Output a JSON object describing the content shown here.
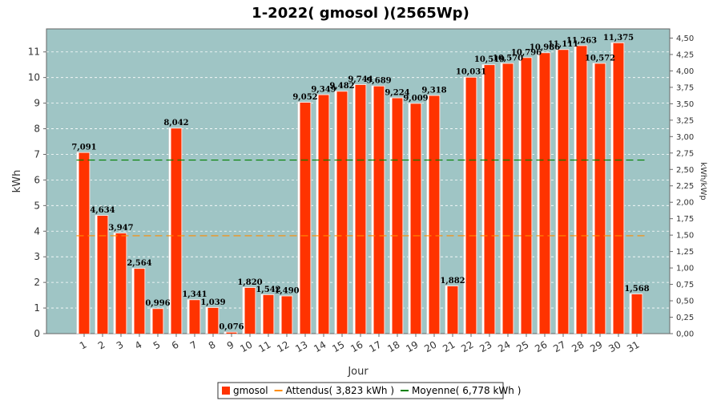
{
  "colors": {
    "plot_background": "#9fc5c5",
    "bar_fill": "#ff3300",
    "bar_highlight": "#ffffff",
    "attendu_line": "#ff8c00",
    "moyenne_line": "#008000",
    "grid": "#ffffff"
  },
  "legend": {
    "items": [
      {
        "label": "gmosol",
        "symbol": "square",
        "color": "#ff3300"
      },
      {
        "label": "Attendus( 3,823 kWh )",
        "symbol": "line",
        "color": "#ff8c00"
      },
      {
        "label": "Moyenne( 6,778 kWh )",
        "symbol": "line",
        "color": "#008000"
      }
    ]
  },
  "chart_data": {
    "type": "bar",
    "title": "1-2022( gmosol )(2565Wp)",
    "xlabel": "Jour",
    "ylabel": "kWh",
    "y2label": "kWh/kWp",
    "ylim": [
      0,
      11.9
    ],
    "y2lim": [
      0,
      4.64
    ],
    "y_ticks": [
      "0",
      "1",
      "2",
      "3",
      "4",
      "5",
      "6",
      "7",
      "8",
      "9",
      "10",
      "11"
    ],
    "y2_ticks": [
      "0,00",
      "0,25",
      "0,50",
      "0,75",
      "1,00",
      "1,25",
      "1,50",
      "1,75",
      "2,00",
      "2,25",
      "2,50",
      "2,75",
      "3,00",
      "3,25",
      "3,50",
      "3,75",
      "4,00",
      "4,25",
      "4,50"
    ],
    "categories": [
      "1",
      "2",
      "3",
      "4",
      "5",
      "6",
      "7",
      "8",
      "9",
      "10",
      "11",
      "12",
      "13",
      "14",
      "15",
      "16",
      "17",
      "18",
      "19",
      "20",
      "21",
      "22",
      "23",
      "24",
      "25",
      "26",
      "27",
      "28",
      "29",
      "30",
      "31"
    ],
    "series": [
      {
        "name": "gmosol",
        "values": [
          7.091,
          4.634,
          3.947,
          2.564,
          0.996,
          8.042,
          1.341,
          1.039,
          0.076,
          1.82,
          1.542,
          1.49,
          9.052,
          9.349,
          9.482,
          9.744,
          9.689,
          9.224,
          9.009,
          9.318,
          1.882,
          10.031,
          10.519,
          10.57,
          10.796,
          10.986,
          11.111,
          11.263,
          10.572,
          11.375,
          1.568
        ],
        "labels": [
          "7,091",
          "4,634",
          "3,947",
          "2,564",
          "0,996",
          "8,042",
          "1,341",
          "1,039",
          "0,076",
          "1,820",
          "1,542",
          "1,490",
          "9,052",
          "9,349",
          "9,482",
          "9,744",
          "9,689",
          "9,224",
          "9,009",
          "9,318",
          "1,882",
          "10,031",
          "10,519",
          "10,570",
          "10,796",
          "10,986",
          "11,111",
          "11,263",
          "10,572",
          "11,375",
          "1,568"
        ]
      }
    ],
    "reference_lines": [
      {
        "name": "Attendus( 3,823 kWh )",
        "value": 3.823
      },
      {
        "name": "Moyenne( 6,778 kWh )",
        "value": 6.778
      }
    ],
    "grid": true,
    "legend_position": "bottom"
  }
}
